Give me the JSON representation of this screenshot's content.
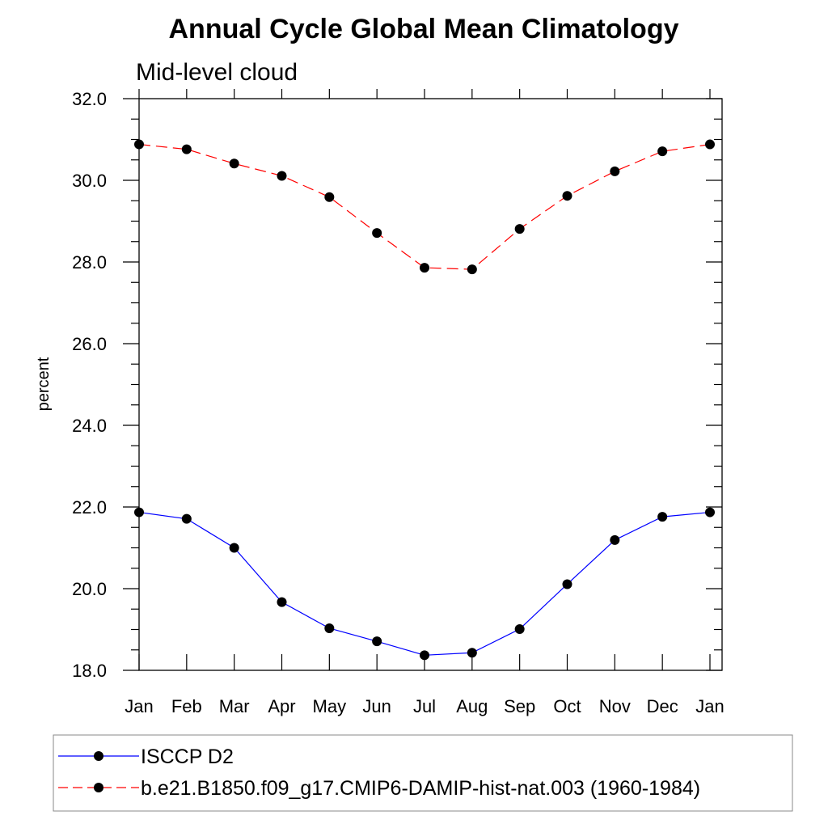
{
  "chart_data": {
    "type": "line",
    "title": "Annual Cycle Global Mean Climatology",
    "subtitle": "Mid-level cloud",
    "ylabel": "percent",
    "xlabel": "",
    "categories": [
      "Jan",
      "Feb",
      "Mar",
      "Apr",
      "May",
      "Jun",
      "Jul",
      "Aug",
      "Sep",
      "Oct",
      "Nov",
      "Dec",
      "Jan"
    ],
    "ylim": [
      18.0,
      32.0
    ],
    "yticks": [
      "18.0",
      "20.0",
      "22.0",
      "24.0",
      "26.0",
      "28.0",
      "30.0",
      "32.0"
    ],
    "grid": false,
    "legend_position": "bottom",
    "series": [
      {
        "name": "ISCCP D2",
        "color": "#0000ff",
        "line_style": "solid",
        "marker": "filled-circle",
        "values": [
          21.87,
          21.71,
          21.0,
          19.67,
          19.03,
          18.71,
          18.37,
          18.43,
          19.01,
          20.11,
          21.19,
          21.76,
          21.87
        ]
      },
      {
        "name": "b.e21.B1850.f09_g17.CMIP6-DAMIP-hist-nat.003 (1960-1984)",
        "color": "#ff0000",
        "line_style": "dashed",
        "marker": "filled-circle",
        "values": [
          30.88,
          30.76,
          30.41,
          30.11,
          29.59,
          28.71,
          27.86,
          27.82,
          28.81,
          29.62,
          30.22,
          30.71,
          30.88
        ]
      }
    ]
  }
}
